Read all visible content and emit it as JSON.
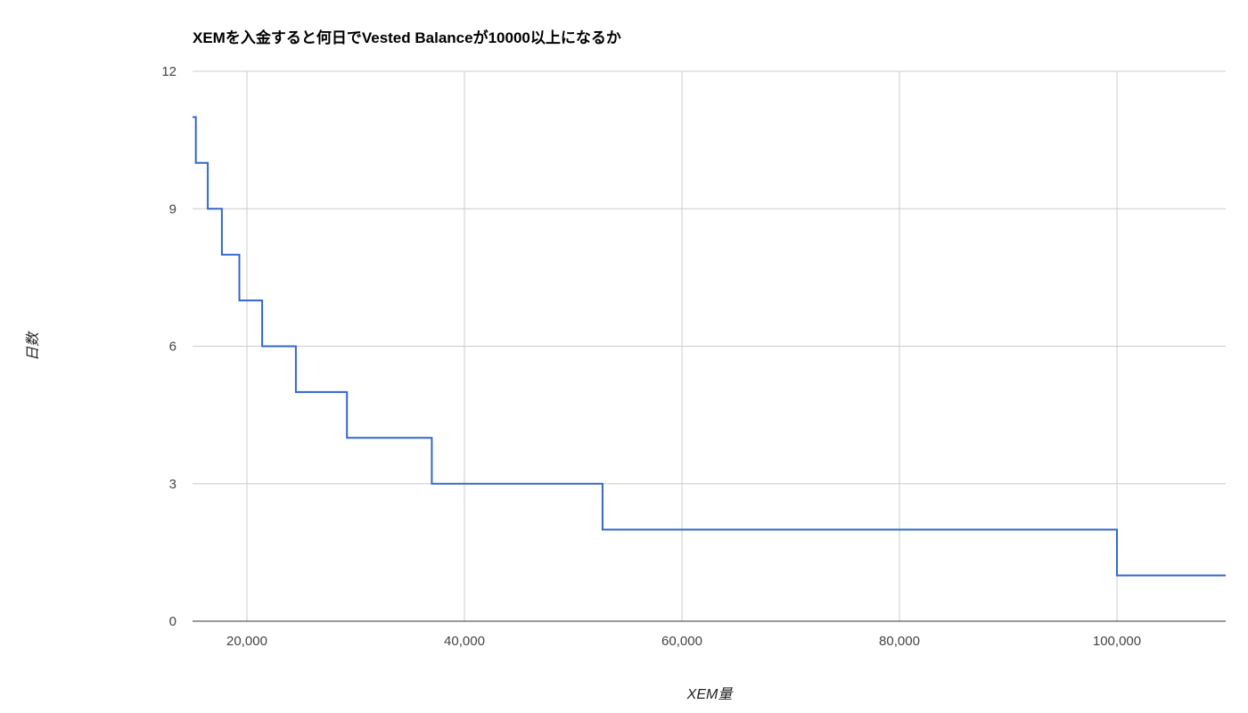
{
  "chart_data": {
    "type": "line",
    "step": true,
    "title": "XEMを入金すると何日でVested Balanceが10000以上になるか",
    "xlabel": "XEM量",
    "ylabel": "日数",
    "xlim": [
      15000,
      110000
    ],
    "ylim": [
      0,
      12
    ],
    "x_ticks": [
      {
        "value": 20000,
        "label": "20,000"
      },
      {
        "value": 40000,
        "label": "40,000"
      },
      {
        "value": 60000,
        "label": "60,000"
      },
      {
        "value": 80000,
        "label": "80,000"
      },
      {
        "value": 100000,
        "label": "100,000"
      }
    ],
    "y_ticks": [
      {
        "value": 0,
        "label": "0"
      },
      {
        "value": 3,
        "label": "3"
      },
      {
        "value": 6,
        "label": "6"
      },
      {
        "value": 9,
        "label": "9"
      },
      {
        "value": 12,
        "label": "12"
      }
    ],
    "grid": true,
    "legend": "none",
    "series": [
      {
        "color": "#3366cc",
        "segments": [
          {
            "x_start": 15000,
            "x_end": 15300,
            "y": 11
          },
          {
            "x_start": 15300,
            "x_end": 16400,
            "y": 10
          },
          {
            "x_start": 16400,
            "x_end": 17700,
            "y": 9
          },
          {
            "x_start": 17700,
            "x_end": 19300,
            "y": 8
          },
          {
            "x_start": 19300,
            "x_end": 21400,
            "y": 7
          },
          {
            "x_start": 21400,
            "x_end": 24500,
            "y": 6
          },
          {
            "x_start": 24500,
            "x_end": 29200,
            "y": 5
          },
          {
            "x_start": 29200,
            "x_end": 37000,
            "y": 4
          },
          {
            "x_start": 37000,
            "x_end": 52700,
            "y": 3
          },
          {
            "x_start": 52700,
            "x_end": 100000,
            "y": 2
          },
          {
            "x_start": 100000,
            "x_end": 110000,
            "y": 1
          }
        ]
      }
    ]
  }
}
